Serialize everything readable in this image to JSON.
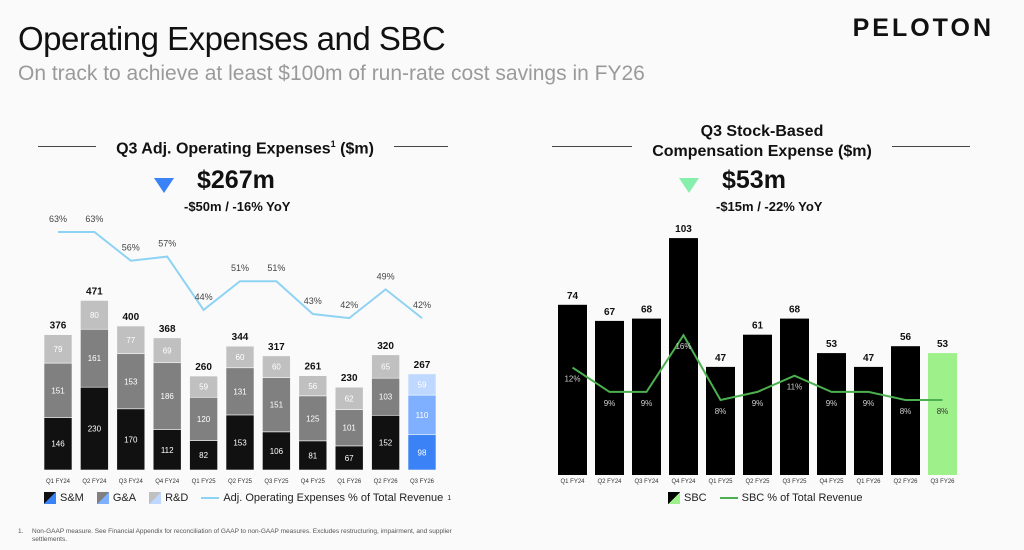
{
  "header": {
    "title": "Operating Expenses and SBC",
    "subtitle": "On track to achieve at least $100m of run-rate cost savings in FY26",
    "brand": "PELOTON"
  },
  "left": {
    "panel_title": "Q3 Adj. Operating Expenses",
    "panel_title_sup": "1",
    "panel_title_unit": " ($m)",
    "kpi_value": "$267m",
    "kpi_change": "-$50m / -16% YoY",
    "kpi_color": "#3b82f6"
  },
  "right": {
    "panel_title_line1": "Q3 Stock-Based",
    "panel_title_line2": "Compensation Expense ($m)",
    "kpi_value": "$53m",
    "kpi_change": "-$15m / -22% YoY",
    "kpi_color": "#86efac"
  },
  "footnote": {
    "number": "1.",
    "text": "Non-GAAP measure. See Financial Appendix for reconciliation of GAAP to non-GAAP measures. Excludes restructuring, impairment, and supplier settlements."
  },
  "chart_data": [
    {
      "type": "bar",
      "stacked": true,
      "categories": [
        "Q1 FY24",
        "Q2 FY24",
        "Q3 FY24",
        "Q4 FY24",
        "Q1 FY25",
        "Q2 FY25",
        "Q3 FY25",
        "Q4 FY25",
        "Q1 FY26",
        "Q2 FY26",
        "Q3 FY26"
      ],
      "series": [
        {
          "name": "S&M",
          "values": [
            146,
            230,
            170,
            112,
            82,
            153,
            106,
            81,
            67,
            152,
            98
          ],
          "color": "#111111",
          "highlight_color": "#3b82f6"
        },
        {
          "name": "G&A",
          "values": [
            151,
            161,
            153,
            186,
            120,
            131,
            151,
            125,
            101,
            103,
            110
          ],
          "color": "#808080",
          "highlight_color": "#7fb0ff"
        },
        {
          "name": "R&D",
          "values": [
            79,
            80,
            77,
            69,
            59,
            60,
            60,
            56,
            62,
            65,
            59
          ],
          "color": "#c0c0c0",
          "highlight_color": "#bfd8ff"
        }
      ],
      "totals": [
        376,
        471,
        400,
        368,
        260,
        344,
        317,
        261,
        230,
        320,
        267
      ],
      "line": {
        "name": "Adj. Operating Expenses % of Total Revenue",
        "name_sup": "1",
        "values": [
          63,
          63,
          56,
          57,
          44,
          51,
          51,
          43,
          42,
          49,
          42
        ],
        "labels": [
          "63%",
          "63%",
          "56%",
          "57%",
          "44%",
          "51%",
          "51%",
          "43%",
          "42%",
          "49%",
          "42%"
        ],
        "color": "#8fd3f4"
      },
      "legend": "bottom"
    },
    {
      "type": "bar",
      "categories": [
        "Q1 FY24",
        "Q2 FY24",
        "Q3 FY24",
        "Q4 FY24",
        "Q1 FY25",
        "Q2 FY25",
        "Q3 FY25",
        "Q4 FY25",
        "Q1 FY26",
        "Q2 FY26",
        "Q3 FY26"
      ],
      "series": [
        {
          "name": "SBC",
          "values": [
            74,
            67,
            68,
            103,
            47,
            61,
            68,
            53,
            47,
            56,
            53
          ],
          "color": "#000000",
          "highlight_color": "#9ef08a"
        }
      ],
      "line": {
        "name": "SBC % of Total Revenue",
        "values": [
          12,
          9,
          9,
          16,
          8,
          9,
          11,
          9,
          9,
          8,
          8
        ],
        "labels": [
          "12%",
          "9%",
          "9%",
          "16%",
          "8%",
          "9%",
          "11%",
          "9%",
          "9%",
          "8%",
          "8%"
        ],
        "color": "#4caf50"
      },
      "legend": "bottom"
    }
  ]
}
